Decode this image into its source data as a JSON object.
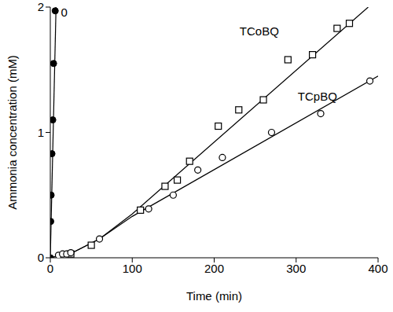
{
  "chart_data": {
    "type": "scatter",
    "x_label": "Time (min)",
    "y_label": "Ammonia concentration (mM)",
    "xlim": [
      0,
      400
    ],
    "xticks": [
      0,
      100,
      200,
      300,
      400
    ],
    "ylim": [
      0,
      2
    ],
    "yticks": [
      0,
      1,
      2
    ],
    "grid": false,
    "series": [
      {
        "name": "0",
        "color": "#000000",
        "marker": "filled_circle",
        "x": [
          0,
          0.5,
          1,
          2,
          3,
          4,
          6
        ],
        "values": [
          0,
          0.29,
          0.5,
          0.83,
          1.1,
          1.55,
          1.97
        ],
        "fit_x": [
          0,
          7
        ],
        "fit_y": [
          0,
          2
        ],
        "label_at": [
          17,
          1.96
        ]
      },
      {
        "name": "TCoBQ",
        "color": "#000000",
        "marker": "open_square",
        "x": [
          25,
          50,
          110,
          140,
          155,
          170,
          205,
          230,
          260,
          290,
          320,
          350,
          365
        ],
        "values": [
          0.03,
          0.1,
          0.38,
          0.57,
          0.62,
          0.77,
          1.05,
          1.18,
          1.26,
          1.58,
          1.62,
          1.83,
          1.87
        ],
        "fit_x": [
          0,
          30,
          60,
          100,
          388
        ],
        "fit_y": [
          0,
          0.05,
          0.15,
          0.35,
          2
        ],
        "label_at": [
          255,
          1.81
        ]
      },
      {
        "name": "TCpBQ",
        "color": "#000000",
        "marker": "open_circle",
        "x": [
          10,
          15,
          20,
          25,
          60,
          120,
          150,
          180,
          210,
          270,
          330,
          390
        ],
        "values": [
          0.02,
          0.03,
          0.03,
          0.04,
          0.15,
          0.39,
          0.5,
          0.7,
          0.8,
          1.0,
          1.15,
          1.41
        ],
        "fit_x": [
          0,
          30,
          60,
          100,
          400
        ],
        "fit_y": [
          0,
          0.05,
          0.15,
          0.33,
          1.45
        ],
        "label_at": [
          326,
          1.29
        ]
      }
    ]
  }
}
